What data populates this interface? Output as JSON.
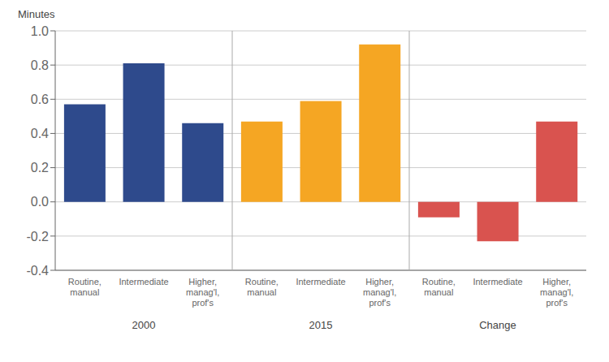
{
  "chart_data": {
    "type": "bar",
    "ylabel": "Minutes",
    "categories": [
      "Routine,\nmanual",
      "Intermediate",
      "Higher,\nmanag'l,\nprof's",
      "Routine,\nmanual",
      "Intermediate",
      "Higher,\nmanag'l,\nprof's",
      "Routine,\nmanual",
      "Intermediate",
      "Higher,\nmanag'l,\nprof's"
    ],
    "category_groups": [
      "2000",
      "2000",
      "2000",
      "2015",
      "2015",
      "2015",
      "Change",
      "Change",
      "Change"
    ],
    "values": [
      0.57,
      0.81,
      0.46,
      0.47,
      0.59,
      0.92,
      -0.09,
      -0.23,
      0.47
    ],
    "colors": [
      "#2E4A8C",
      "#2E4A8C",
      "#2E4A8C",
      "#F5A623",
      "#F5A623",
      "#F5A623",
      "#D9534F",
      "#D9534F",
      "#D9534F"
    ],
    "ylim": [
      -0.4,
      1.0
    ],
    "yticks": [
      -0.4,
      -0.2,
      {
        "value": 0,
        "label": "0.0"
      },
      0.2,
      0.4,
      0.6,
      0.8,
      {
        "value": 1,
        "label": "1.0"
      }
    ],
    "grid": true
  }
}
